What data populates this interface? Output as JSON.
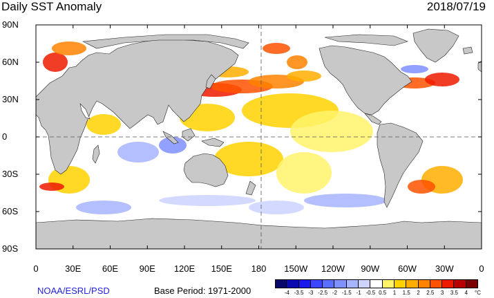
{
  "header": {
    "title": "Daily SST Anomaly",
    "date": "2018/07/19"
  },
  "axes": {
    "y_ticks": [
      "90N",
      "60N",
      "30N",
      "0",
      "30S",
      "60S",
      "90S"
    ],
    "x_ticks": [
      "0",
      "30E",
      "60E",
      "90E",
      "120E",
      "150E",
      "180",
      "150W",
      "120W",
      "90W",
      "60W",
      "30W",
      "0"
    ]
  },
  "footer": {
    "credit": "NOAA/ESRL/PSD",
    "base_period": "Base Period: 1971-2000"
  },
  "colorbar": {
    "unit": "°C",
    "tick_labels": [
      "-4",
      "-3.5",
      "-3",
      "-2.5",
      "-2",
      "-1.5",
      "-1",
      "-0.5",
      "0.5",
      "1",
      "1.5",
      "2",
      "2.5",
      "3",
      "3.5",
      "4"
    ],
    "colors": [
      "#08086b",
      "#0a0ab0",
      "#1a1aee",
      "#3c46ff",
      "#5a6eff",
      "#7f90ff",
      "#a7b4ff",
      "#ccd3ff",
      "#ffffff",
      "#fff36a",
      "#ffd200",
      "#ffae00",
      "#ff8300",
      "#ff5200",
      "#ee1a00",
      "#b80000",
      "#7a0000"
    ]
  },
  "map": {
    "land_color": "#c8c8c8",
    "ocean_color": "#ffffff"
  }
}
